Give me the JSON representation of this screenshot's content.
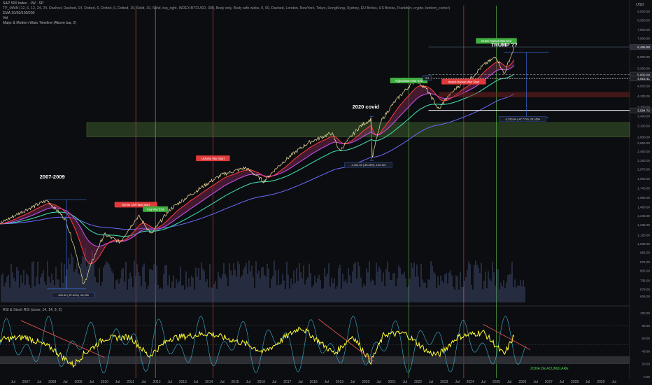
{
  "header": {
    "title": "S&P 500 Index · 1W · SP",
    "line1": "TP_MAIN (12, 6, 12, 24, 24, Dashed, Dashed, 14, Dotted, 6, Dotted, 6, Dotted, 15, Solid, 10, Solid, top_right, INDEX:BTCUSD, 300, Body only, Body with wicks, 0, 90, Dashed, London, NewYork, Tokyo, HongKong, Sydney, EU Brinks, US Brinks, Frankfurt, crypto, bottom_center)",
    "line2": "EMA 20/50/100/200",
    "line3": "Vol",
    "line4": "Major & Modern Wars Timeline (Above bar, 2)",
    "currency": "USD"
  },
  "rsi_title": "RSI & Stoch RSI (close, 14, 14, 3, 3)",
  "colors": {
    "background": "#0c0d10",
    "ema20": "#ff3b3b",
    "ema50": "#c050e8",
    "ema100": "#3fd6a6",
    "ema200": "#6a6cff",
    "zone_fill": "#3a5a2a",
    "rsi": "#ffff33",
    "stoch": "#3fb8d8",
    "war_start_line": "#c84444",
    "war_end_line": "#5ab54a"
  },
  "chart_data": [
    {
      "type": "line",
      "title": "S&P 500 Index",
      "x_ticks": [
        "2006",
        "Jul",
        "2007",
        "Jul",
        "2008",
        "Jul",
        "2009",
        "Jul",
        "2010",
        "Jul",
        "2011",
        "Jul",
        "2012",
        "Jul",
        "2013",
        "Jul",
        "2014",
        "Jul",
        "2015",
        "Jul",
        "2016",
        "Jul",
        "2017",
        "Jul",
        "2018",
        "Jul",
        "2019",
        "Jul",
        "2020",
        "Jul",
        "2021",
        "Jul",
        "2022",
        "Jul",
        "2023",
        "Jul",
        "2024",
        "Jul",
        "2025",
        "Jul",
        "2026",
        "Jul",
        "2027",
        "Jul",
        "2028",
        "Jul",
        "2029",
        "Jul"
      ],
      "y_scale": "log",
      "y_ticks": [
        636.0,
        679.0,
        735.0,
        805.0,
        875.0,
        955.0,
        1035.0,
        1125.0,
        1235.0,
        1345.0,
        1460.0,
        1590.0,
        1740.0,
        1900.0,
        2070.0,
        2250.0,
        2450.0,
        2650.0,
        2800.0,
        3100.0,
        3400.0,
        3700.0,
        4100.0,
        4500.0,
        4900.0,
        5300.0,
        5900.0,
        6400.0,
        7000.0,
        7600.0,
        8300.0,
        9000.0
      ],
      "price_labels": [
        "6,465.98",
        "5,000.00",
        "4,818.41",
        "3,584.72"
      ],
      "series": [
        {
          "name": "S&P 500",
          "x": [
            2006.0,
            2007.0,
            2007.8,
            2008.5,
            2009.2,
            2010.0,
            2010.6,
            2011.3,
            2011.8,
            2012.5,
            2013.5,
            2014.5,
            2015.4,
            2016.1,
            2016.8,
            2017.8,
            2018.7,
            2019.0,
            2019.8,
            2020.2,
            2020.25,
            2020.6,
            2021.0,
            2021.9,
            2022.3,
            2022.8,
            2023.0,
            2023.5,
            2024.0,
            2024.5,
            2025.0,
            2025.3,
            2025.7
          ],
          "values": [
            1250,
            1420,
            1550,
            1300,
            700,
            1130,
            1050,
            1340,
            1130,
            1420,
            1690,
            1970,
            2100,
            1850,
            2200,
            2650,
            2900,
            2450,
            3100,
            3300,
            2300,
            3250,
            3750,
            4750,
            4400,
            3600,
            3900,
            4450,
            4800,
            5450,
            5900,
            5000,
            6465
          ]
        }
      ],
      "ema_lines": [
        "EMA 20",
        "EMA 50",
        "EMA 100",
        "EMA 200"
      ],
      "annotations": [
        {
          "text": "2007-2009",
          "x": 2008.0,
          "y": 1900
        },
        {
          "text": "Syrian Civil War Start",
          "x": 2011.2,
          "y": 1480,
          "kind": "war-start"
        },
        {
          "text": "Iraq War End",
          "x": 2011.95,
          "y": 1420,
          "kind": "war-end"
        },
        {
          "text": "Ukraine War Start",
          "x": 2014.15,
          "y": 2280,
          "kind": "war-start"
        },
        {
          "text": "2020 covid",
          "x": 2020.0,
          "y": 3650
        },
        {
          "text": "Afghanistan War End",
          "x": 2021.65,
          "y": 4700,
          "kind": "war-end"
        },
        {
          "text": "Israeli-Hamas War Start",
          "x": 2023.75,
          "y": 4650,
          "kind": "war-start"
        },
        {
          "text": "Israeli-Hamas War End",
          "x": 2025.0,
          "y": 6800,
          "kind": "war-end"
        },
        {
          "text": "TRUMP ??",
          "x": 2025.3,
          "y": 6500
        },
        {
          "text": "-909.30 (-57.69%) -90,930",
          "x": 2008.8,
          "y": 640
        },
        {
          "text": "-1,201.04 (-35.45%) -120,104",
          "x": 2020.1,
          "y": 2150
        },
        {
          "text": "-2,916.64 (-47.77%) -291,664",
          "x": 2026.0,
          "y": 3300
        },
        {
          "text": "0.5",
          "x": 2022.35,
          "y": 4830
        }
      ],
      "zones": [
        {
          "name": "accumulation zone",
          "from": 2800,
          "to": 3200
        }
      ],
      "war_lines": {
        "starts": [
          2011.2,
          2014.15,
          2023.75
        ],
        "ends": [
          2011.95,
          2021.65,
          2025.0
        ]
      }
    },
    {
      "type": "line",
      "title": "RSI & Stoch RSI (close, 14, 14, 3, 3)",
      "y_ticks": [
        100.0,
        80.0,
        60.0,
        40.0,
        20.0,
        0.0
      ],
      "ylim": [
        0,
        100
      ],
      "zone_label": "ZONA DE ACUMULARE",
      "series": [
        {
          "name": "RSI",
          "x": [
            2006.0,
            2007.0,
            2008.0,
            2008.8,
            2009.2,
            2010.0,
            2011.0,
            2011.7,
            2012.5,
            2014.0,
            2015.5,
            2016.1,
            2017.5,
            2018.8,
            2019.5,
            2020.2,
            2020.7,
            2021.5,
            2022.4,
            2022.8,
            2023.5,
            2024.5,
            2025.3,
            2025.7
          ],
          "values": [
            58,
            62,
            44,
            18,
            35,
            60,
            62,
            32,
            60,
            68,
            50,
            38,
            78,
            36,
            64,
            24,
            66,
            68,
            38,
            34,
            62,
            70,
            34,
            66
          ]
        }
      ]
    }
  ]
}
